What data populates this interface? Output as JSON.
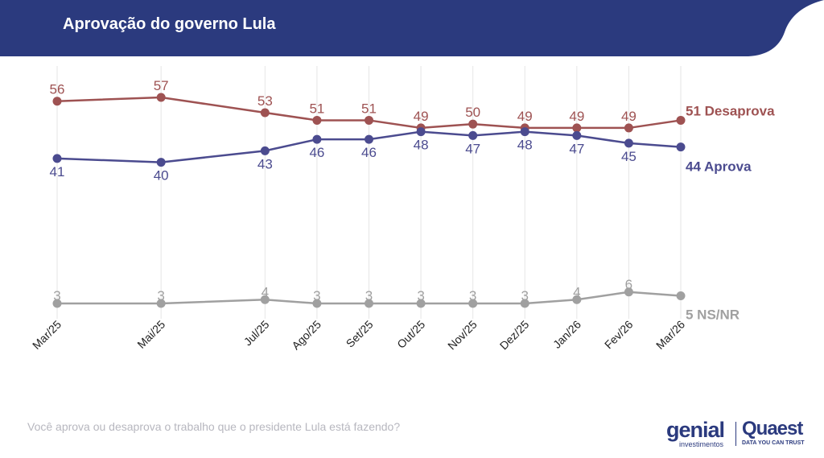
{
  "header": {
    "title": "Aprovação do governo Lula"
  },
  "colors": {
    "header_bg": "#2b3a7e",
    "desaprova": "#9e5252",
    "aprova": "#4b4b8f",
    "nsnr": "#a0a0a0",
    "grid": "#e6e6e6"
  },
  "footer": {
    "question": "Você aprova ou desaprova o trabalho que o presidente Lula está fazendo?",
    "logo_genial": "genial",
    "logo_genial_sub": "investimentos",
    "logo_quaest": "Quaest",
    "logo_quaest_sub": "DATA YOU CAN TRUST"
  },
  "chart_data": {
    "type": "line",
    "title": "Aprovação do governo Lula",
    "categories": [
      "Mar/25",
      "Mai/25",
      "Jul/25",
      "Ago/25",
      "Set/25",
      "Out/25",
      "Nov/25",
      "Dez/25",
      "Jan/26",
      "Fev/26",
      "Mar/26"
    ],
    "month_index": [
      0,
      2,
      4,
      5,
      6,
      7,
      8,
      9,
      10,
      11,
      12
    ],
    "ylim": [
      0,
      60
    ],
    "grid": "vertical",
    "series": [
      {
        "key": "desaprova",
        "name": "Desaprova",
        "end_label": "51 Desaprova",
        "color": "#9e5252",
        "values": [
          56,
          57,
          53,
          51,
          51,
          49,
          50,
          49,
          49,
          49,
          51
        ]
      },
      {
        "key": "aprova",
        "name": "Aprova",
        "end_label": "44 Aprova",
        "color": "#4b4b8f",
        "values": [
          41,
          40,
          43,
          46,
          46,
          48,
          47,
          48,
          47,
          45,
          44
        ]
      },
      {
        "key": "nsnr",
        "name": "NS/NR",
        "end_label": "5 NS/NR",
        "color": "#a0a0a0",
        "values": [
          3,
          3,
          4,
          3,
          3,
          3,
          3,
          3,
          4,
          6,
          5
        ]
      }
    ]
  }
}
